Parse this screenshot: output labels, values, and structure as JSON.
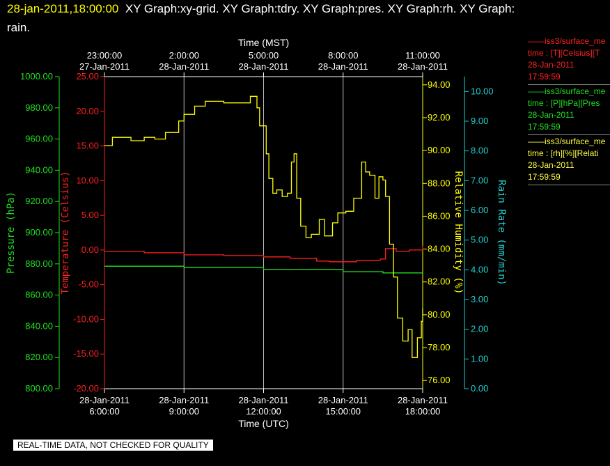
{
  "header": {
    "timestamp": "28-jan-2011,18:00:00",
    "title_line1": "XY Graph:xy-grid.  XY Graph:tdry.  XY Graph:pres.  XY Graph:rh.  XY Graph:",
    "title_line2": "rain."
  },
  "legend": [
    {
      "line": "——iss3/surface_me",
      "field": "time : [T][Celsius][T",
      "date": "28-Jan-2011",
      "time": "17:59:59",
      "color": "#ff2020"
    },
    {
      "line": "——iss3/surface_me",
      "field": "time : [P][hPa][Pres",
      "date": "28-Jan-2011",
      "time": "17:59:59",
      "color": "#20e020"
    },
    {
      "line": "——iss3/surface_me",
      "field": "time : [rh][%][Relati",
      "date": "28-Jan-2011",
      "time": "17:59:59",
      "color": "#ffff40"
    }
  ],
  "banner": "REAL-TIME DATA, NOT CHECKED FOR QUALITY",
  "chart_data": {
    "type": "line",
    "top_axis": {
      "label": "Time (MST)",
      "ticks": [
        {
          "time": "23:00:00",
          "date": "27-Jan-2011"
        },
        {
          "time": "2:00:00",
          "date": "28-Jan-2011"
        },
        {
          "time": "5:00:00",
          "date": "28-Jan-2011"
        },
        {
          "time": "8:00:00",
          "date": "28-Jan-2011"
        },
        {
          "time": "11:00:00",
          "date": "28-Jan-2011"
        }
      ]
    },
    "bottom_axis": {
      "label": "Time (UTC)",
      "range_hours": [
        6.0,
        18.0
      ],
      "ticks": [
        {
          "hour": 6,
          "date": "28-Jan-2011",
          "time": "6:00:00"
        },
        {
          "hour": 9,
          "date": "28-Jan-2011",
          "time": "9:00:00"
        },
        {
          "hour": 12,
          "date": "28-Jan-2011",
          "time": "12:00:00"
        },
        {
          "hour": 15,
          "date": "28-Jan-2011",
          "time": "15:00:00"
        },
        {
          "hour": 18,
          "date": "28-Jan-2011",
          "time": "18:00:00"
        }
      ],
      "grid": true
    },
    "axes": {
      "pressure": {
        "label": "Pressure (hPa)",
        "color": "#20e020",
        "ylim": [
          800,
          1000
        ],
        "ticks": [
          "1000.00",
          "980.00",
          "960.00",
          "940.00",
          "920.00",
          "900.00",
          "880.00",
          "860.00",
          "840.00",
          "820.00",
          "800.00"
        ]
      },
      "temperature": {
        "label": "Temperature (Celsius)",
        "color": "#ff2020",
        "ylim": [
          -20,
          25
        ],
        "ticks": [
          "25.00",
          "20.00",
          "15.00",
          "10.00",
          "5.00",
          "0.00",
          "-5.00",
          "-10.00",
          "-15.00",
          "-20.00"
        ]
      },
      "rh": {
        "label": "Relative Humidity (%)",
        "color": "#ffff00",
        "ylim": [
          75.5,
          94.5
        ],
        "ticks": [
          "94.00",
          "92.00",
          "90.00",
          "88.00",
          "86.00",
          "84.00",
          "82.00",
          "80.00",
          "78.00",
          "76.00"
        ]
      },
      "rain": {
        "label": "Rain Rate (mm/min)",
        "color": "#20d0d0",
        "ylim": [
          0,
          10.5
        ],
        "ticks": [
          "10.00",
          "9.00",
          "8.00",
          "7.00",
          "6.00",
          "5.00",
          "4.00",
          "3.00",
          "2.00",
          "1.00",
          "0.00"
        ]
      }
    },
    "series": [
      {
        "name": "iss3/surface_me T",
        "axis": "temperature",
        "color": "#ff2020",
        "x": [
          6.0,
          7.5,
          9.0,
          10.5,
          12.0,
          13.0,
          14.0,
          14.5,
          15.5,
          16.4,
          16.6,
          17.0,
          17.5,
          18.0
        ],
        "y": [
          -0.2,
          -0.4,
          -0.7,
          -0.8,
          -1.0,
          -1.2,
          -1.6,
          -1.7,
          -1.5,
          -1.3,
          0.2,
          -0.2,
          0.0,
          0.6
        ]
      },
      {
        "name": "iss3/surface_me P",
        "axis": "pressure",
        "color": "#20e020",
        "x": [
          6.0,
          9.0,
          12.0,
          15.0,
          16.5,
          18.0
        ],
        "y": [
          878.5,
          877.8,
          876.5,
          875.0,
          874.2,
          874.0
        ]
      },
      {
        "name": "iss3/surface_me rh",
        "axis": "rh",
        "color": "#ffff00",
        "x": [
          6.0,
          6.3,
          7.0,
          7.5,
          7.9,
          8.3,
          8.8,
          9.0,
          9.4,
          9.8,
          10.5,
          11.0,
          11.5,
          11.75,
          11.85,
          12.1,
          12.2,
          12.35,
          12.5,
          12.7,
          12.9,
          13.05,
          13.15,
          13.25,
          13.4,
          13.6,
          13.8,
          14.1,
          14.3,
          14.6,
          14.8,
          15.1,
          15.4,
          15.7,
          15.85,
          16.0,
          16.2,
          16.35,
          16.5,
          16.6,
          16.75,
          16.9,
          17.05,
          17.25,
          17.45,
          17.6,
          17.8,
          17.95,
          18.0
        ],
        "y": [
          90.3,
          90.8,
          90.6,
          90.8,
          90.7,
          91.1,
          91.8,
          92.2,
          92.7,
          93.0,
          92.9,
          92.9,
          93.3,
          92.6,
          91.5,
          89.8,
          88.3,
          87.4,
          87.6,
          87.2,
          87.4,
          89.3,
          89.8,
          87.1,
          85.4,
          84.7,
          84.9,
          85.8,
          84.8,
          85.6,
          86.2,
          86.3,
          87.1,
          89.3,
          88.7,
          88.5,
          87.1,
          88.4,
          88.2,
          87.2,
          84.3,
          82.3,
          79.8,
          78.4,
          79.1,
          77.4,
          78.6,
          79.6,
          80.4
        ]
      },
      {
        "name": "rain",
        "axis": "rain",
        "color": "#20d0d0",
        "x": [],
        "y": []
      }
    ]
  }
}
